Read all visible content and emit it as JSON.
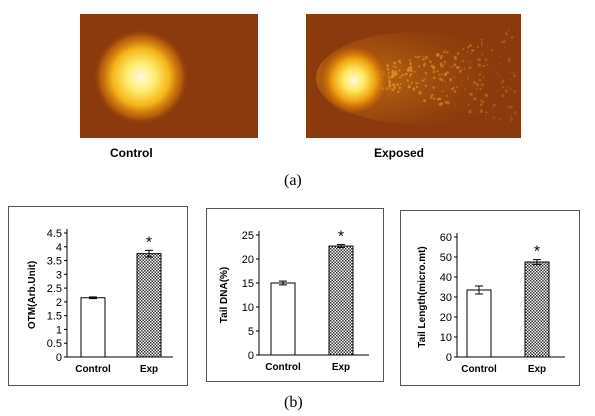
{
  "figure": {
    "panel_a": {
      "label": "(a)",
      "images": [
        {
          "label": "Control"
        },
        {
          "label": "Exposed"
        }
      ]
    },
    "panel_b": {
      "label": "(b)"
    }
  },
  "chart_data": [
    {
      "type": "bar",
      "ylabel": "OTM(Arb.Unit)",
      "categories": [
        "Control",
        "Exp"
      ],
      "values": [
        2.15,
        3.75
      ],
      "errors": [
        0.03,
        0.12
      ],
      "ylim": [
        0,
        4.5
      ],
      "yticks": [
        "0",
        "0.5",
        "1",
        "1.5",
        "2",
        "2.5",
        "3",
        "3.5",
        "4",
        "4.5"
      ],
      "tick_step": 0.5,
      "significance": [
        "",
        "*"
      ],
      "grid": false
    },
    {
      "type": "bar",
      "ylabel": "Tail DNA(%)",
      "categories": [
        "Control",
        "Exp"
      ],
      "values": [
        15,
        22.7
      ],
      "errors": [
        0.4,
        0.3
      ],
      "ylim": [
        0,
        25
      ],
      "yticks": [
        "0",
        "5",
        "10",
        "15",
        "20",
        "25"
      ],
      "tick_step": 5,
      "significance": [
        "",
        "*"
      ],
      "grid": false
    },
    {
      "type": "bar",
      "ylabel": "Tail Length(micro.mt)",
      "categories": [
        "Control",
        "Exp"
      ],
      "values": [
        33.5,
        47.5
      ],
      "errors": [
        2,
        1.2
      ],
      "ylim": [
        0,
        60
      ],
      "yticks": [
        "0",
        "10",
        "20",
        "30",
        "40",
        "50",
        "60"
      ],
      "tick_step": 10,
      "significance": [
        "",
        "*"
      ],
      "grid": false
    }
  ],
  "colors": {
    "comet_background": "#8a3a0c",
    "comet_core": "#fff3a0",
    "comet_halo": "#f0a010",
    "control_bar_fill": "#ffffff",
    "exp_bar_fill": "checkered-gray"
  }
}
